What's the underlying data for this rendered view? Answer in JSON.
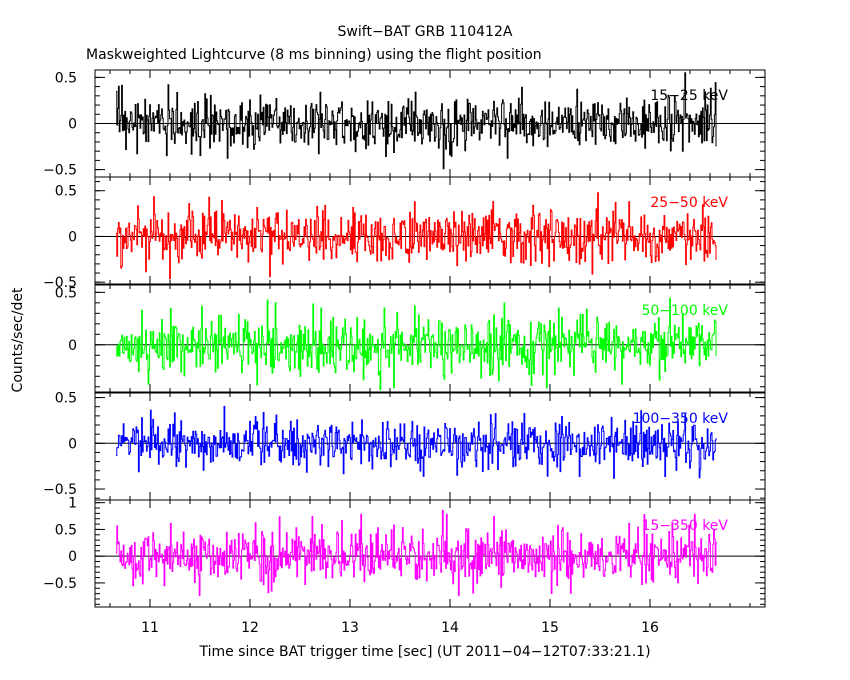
{
  "chart_data": {
    "type": "line",
    "title": "Swift−BAT GRB 110412A",
    "subtitle": "Maskweighted Lightcurve (8 ms binning) using the flight position",
    "xlabel": "Time since BAT trigger time [sec] (UT 2011−04−12T07:33:21.1)",
    "ylabel": "Counts/sec/det",
    "xlim": [
      10.45,
      17.15
    ],
    "x_range": [
      10.66,
      16.66
    ],
    "x_step": 0.008,
    "x_ticks": [
      "11",
      "12",
      "13",
      "14",
      "15",
      "16"
    ],
    "x_tick_values": [
      11,
      12,
      13,
      14,
      15,
      16
    ],
    "series": [
      {
        "name": "15−25 keV",
        "color": "#000000",
        "ylim": [
          -0.58,
          0.58
        ],
        "y_ticks": [
          "−0.5",
          "0",
          "0.5"
        ],
        "y_tick_values": [
          -0.5,
          0,
          0.5
        ],
        "sigma": 0.14
      },
      {
        "name": "25−50 keV",
        "color": "#ff0000",
        "ylim": [
          -0.52,
          0.65
        ],
        "y_ticks": [
          "−0.5",
          "0",
          "0.5"
        ],
        "y_tick_values": [
          -0.5,
          0,
          0.5
        ],
        "sigma": 0.15
      },
      {
        "name": "50−100 keV",
        "color": "#00ff00",
        "ylim": [
          -0.45,
          0.57
        ],
        "y_ticks": [
          "0",
          "0.5"
        ],
        "y_tick_values": [
          0,
          0.5
        ],
        "sigma": 0.14
      },
      {
        "name": "100−350 keV",
        "color": "#0000ff",
        "ylim": [
          -0.62,
          0.55
        ],
        "y_ticks": [
          "−0.5",
          "0",
          "0.5"
        ],
        "y_tick_values": [
          -0.5,
          0,
          0.5
        ],
        "sigma": 0.13
      },
      {
        "name": "15−350 keV",
        "color": "#ff00ff",
        "ylim": [
          -0.95,
          1.05
        ],
        "y_ticks": [
          "−0.5",
          "0",
          "0.5",
          "1"
        ],
        "y_tick_values": [
          -0.5,
          0,
          0.5,
          1
        ],
        "sigma": 0.26
      }
    ]
  }
}
